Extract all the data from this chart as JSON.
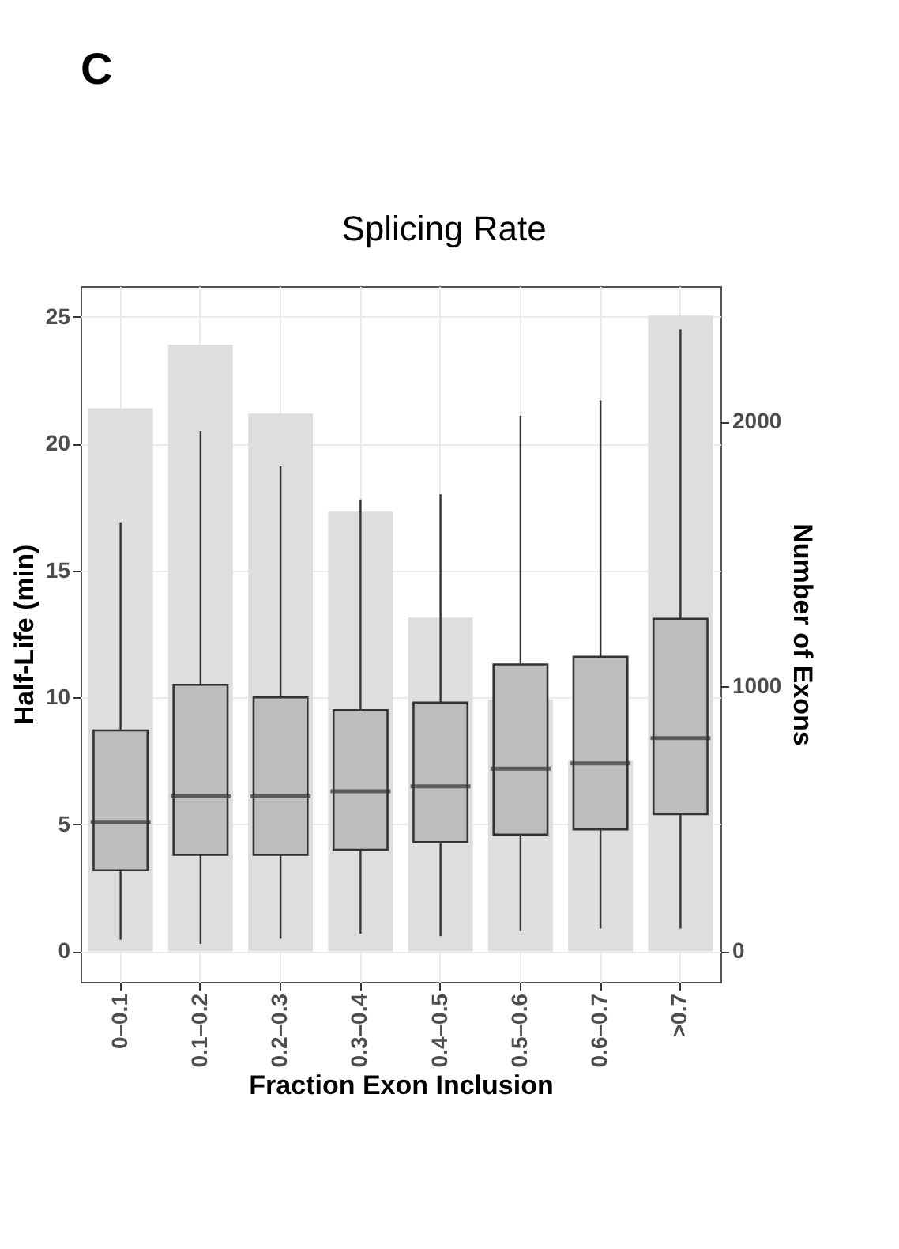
{
  "chart_data": {
    "type": "box",
    "xlabel": "Fraction Exon Inclusion",
    "ylabel": "Half-Life (min)",
    "y2label": "Number of Exons",
    "annotations": [
      "C",
      "Splicing Rate"
    ],
    "categories": [
      "0–0.1",
      "0.1–0.2",
      "0.2–0.3",
      "0.3–0.4",
      "0.4–0.5",
      "0.5–0.6",
      "0.6–0.7",
      ">0.7"
    ],
    "ylim": [
      -1.2,
      26.2
    ],
    "yticks": [
      0,
      5,
      10,
      15,
      20,
      25
    ],
    "y2lim": [
      -115,
      2511
    ],
    "y2ticks": [
      0,
      1000,
      2000
    ],
    "grid": true,
    "series": [
      {
        "type": "bar",
        "axis": "y2",
        "color": "#dedede",
        "values": [
          2050,
          2290,
          2030,
          1660,
          1260,
          950,
          720,
          2400
        ]
      },
      {
        "color": "#bdbdbd",
        "boxes": [
          {
            "low": 0.46,
            "q1": 3.2,
            "median": 5.1,
            "q3": 8.7,
            "high": 16.9
          },
          {
            "low": 0.3,
            "q1": 3.8,
            "median": 6.1,
            "q3": 10.5,
            "high": 20.5
          },
          {
            "low": 0.5,
            "q1": 3.8,
            "median": 6.1,
            "q3": 10.0,
            "high": 19.1
          },
          {
            "low": 0.7,
            "q1": 4.0,
            "median": 6.3,
            "q3": 9.5,
            "high": 17.8
          },
          {
            "low": 0.6,
            "q1": 4.3,
            "median": 6.5,
            "q3": 9.8,
            "high": 18.0
          },
          {
            "low": 0.8,
            "q1": 4.6,
            "median": 7.2,
            "q3": 11.3,
            "high": 21.1
          },
          {
            "low": 0.9,
            "q1": 4.8,
            "median": 7.4,
            "q3": 11.6,
            "high": 21.7
          },
          {
            "low": 0.9,
            "q1": 5.4,
            "median": 8.4,
            "q3": 13.1,
            "high": 24.5
          }
        ]
      }
    ]
  }
}
